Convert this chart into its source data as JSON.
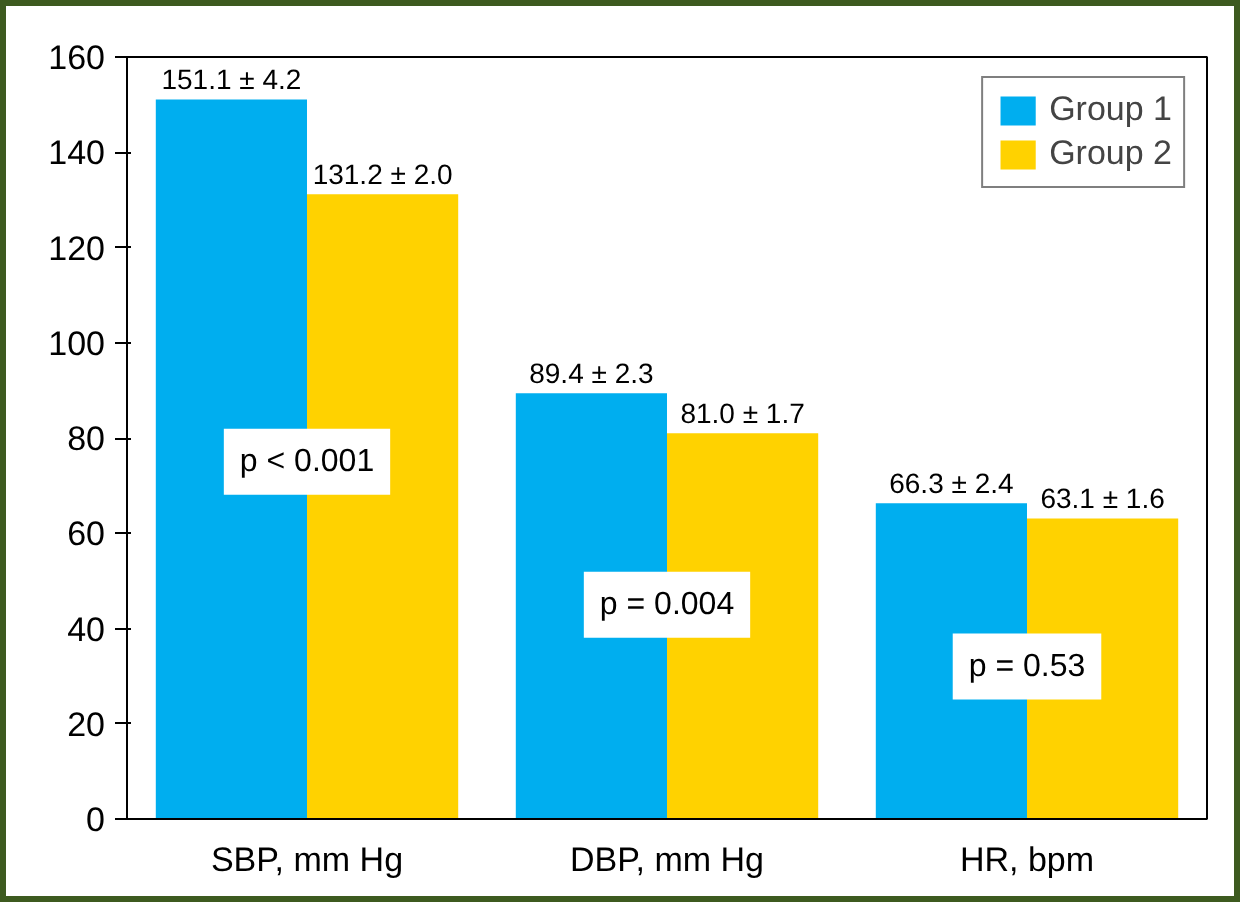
{
  "chart_data": {
    "type": "bar",
    "categories": [
      "SBP, mm Hg",
      "DBP, mm Hg",
      "HR, bpm"
    ],
    "series": [
      {
        "name": "Group 1",
        "color": "#00aeef",
        "values": [
          151.1,
          89.4,
          66.3
        ],
        "value_labels": [
          "151.1 ± 4.2",
          "89.4 ± 2.3",
          "66.3 ± 2.4"
        ]
      },
      {
        "name": "Group 2",
        "color": "#ffd200",
        "values": [
          131.2,
          81.0,
          63.1
        ],
        "value_labels": [
          "131.2 ± 2.0",
          "81.0 ± 1.7",
          "63.1 ± 1.6"
        ]
      }
    ],
    "ylim": [
      0,
      160
    ],
    "yticks": [
      0,
      20,
      40,
      60,
      80,
      100,
      120,
      140,
      160
    ],
    "grid": false,
    "legend": "top right",
    "annotations": [
      {
        "text": "p < 0.001",
        "x": "SBP, mm Hg",
        "y": 75
      },
      {
        "text": "p = 0.004",
        "x": "DBP, mm Hg",
        "y": 45
      },
      {
        "text": "p = 0.53",
        "x": "HR, bpm",
        "y": 32
      }
    ]
  }
}
